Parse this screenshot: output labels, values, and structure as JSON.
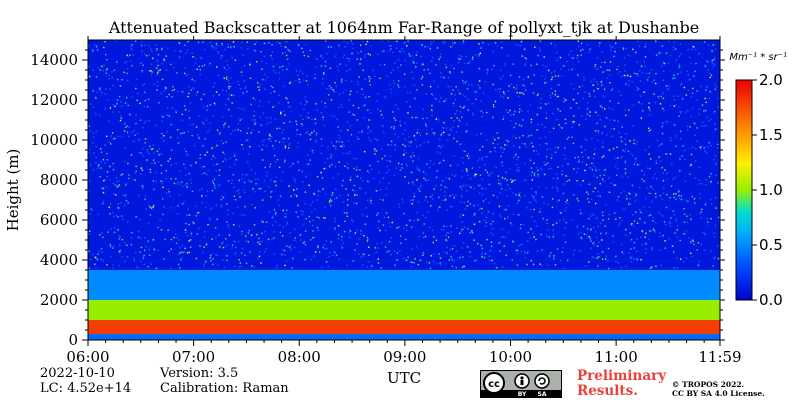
{
  "chart_data": {
    "type": "heatmap",
    "title": "Attenuated Backscatter at 1064nm Far-Range of pollyxt_tjk at Dushanbe",
    "xlabel": "UTC",
    "ylabel": "Height (m)",
    "xlim": [
      "06:00",
      "11:59"
    ],
    "ylim": [
      0,
      15000
    ],
    "x_ticks": [
      "06:00",
      "07:00",
      "08:00",
      "09:00",
      "10:00",
      "11:00",
      "11:59"
    ],
    "y_ticks": [
      "0",
      "2000",
      "4000",
      "6000",
      "8000",
      "10000",
      "12000",
      "14000"
    ],
    "colorbar": {
      "unit_label": "Mm⁻¹ * sr⁻¹",
      "range": [
        0.0,
        2.0
      ],
      "ticks": [
        "0.0",
        "0.5",
        "1.0",
        "1.5",
        "2.0"
      ],
      "colormap": "jet"
    },
    "layers": [
      {
        "height_range_m": [
          0,
          300
        ],
        "value_approx": 0.4
      },
      {
        "height_range_m": [
          300,
          1000
        ],
        "value_approx": 1.8
      },
      {
        "height_range_m": [
          1000,
          2000
        ],
        "value_approx": 1.0
      },
      {
        "height_range_m": [
          2000,
          3500
        ],
        "value_approx": 0.5
      },
      {
        "height_range_m": [
          3500,
          15000
        ],
        "value_approx": 0.1
      }
    ]
  },
  "meta": {
    "date": "2022-10-10",
    "lc": "LC: 4.52e+14",
    "version": "Version: 3.5",
    "calibration": "Calibration: Raman"
  },
  "footer": {
    "preliminary_line1": "Preliminary",
    "preliminary_line2": "Results.",
    "copyright_line1": "© TROPOS 2022.",
    "copyright_line2": "CC BY SA 4.0 License.",
    "cc_badge": {
      "cc": "cc",
      "by": "BY",
      "sa": "SA"
    }
  }
}
